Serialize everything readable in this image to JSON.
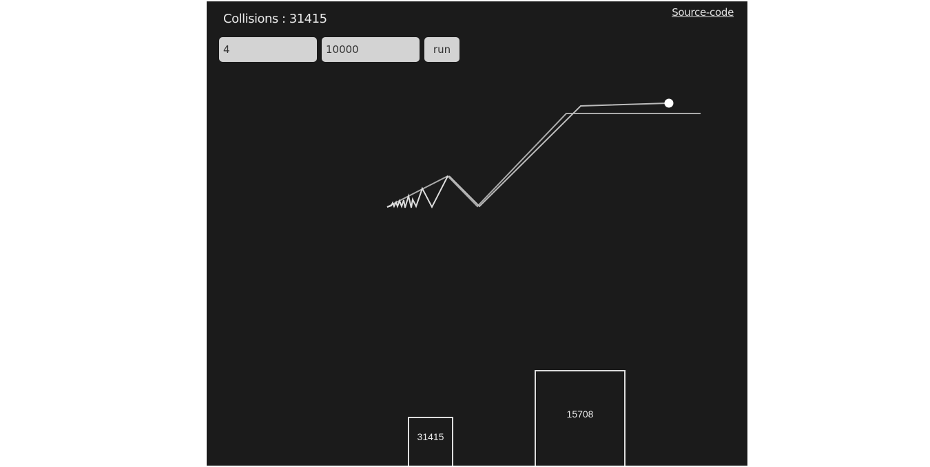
{
  "header": {
    "collisions_label": "Collisions : 31415",
    "source_link": "Source-code"
  },
  "controls": {
    "digits_value": "4",
    "time_steps_value": "10000",
    "run_label": "run"
  },
  "blocks": {
    "small_label": "31415",
    "large_label": "15708"
  },
  "colors": {
    "background": "#1b1b1b",
    "foreground": "#e8e8e8",
    "input": "#d3d3d3"
  }
}
